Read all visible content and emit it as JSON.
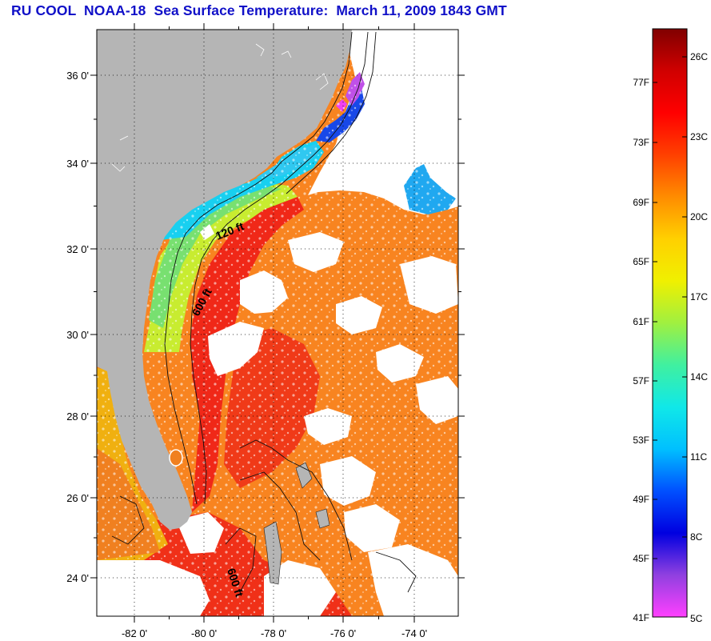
{
  "title": "RU COOL  NOAA-18  Sea Surface Temperature:  March 11, 2009 1843 GMT",
  "map": {
    "lat_ticks": [
      "24 0'",
      "26 0'",
      "28 0'",
      "30 0'",
      "32 0'",
      "34 0'",
      "36 0'"
    ],
    "lon_ticks": [
      "-82 0'",
      "-80 0'",
      "-78 0'",
      "-76 0'",
      "-74 0'"
    ],
    "contour_labels": [
      "120 ft",
      "600 ft",
      "600 ft"
    ],
    "colors": {
      "land": "#b5b5b5",
      "cloud": "#ffffff",
      "gulf_stream": "#f02818",
      "offshore": "#f88420",
      "shelf_warm": "#f8e000",
      "shelf_green": "#90e060",
      "shelf_cyan": "#18d8e8",
      "cold_blue": "#1850f0",
      "cold_purple": "#b040e0"
    }
  },
  "colorbar": {
    "f_labels": [
      "77F",
      "73F",
      "69F",
      "65F",
      "61F",
      "57F",
      "53F",
      "49F",
      "45F",
      "41F"
    ],
    "c_labels": [
      "26C",
      "23C",
      "20C",
      "17C",
      "14C",
      "11C",
      "8C",
      "5C"
    ],
    "stops": [
      "#ff40ff",
      "#9040e0",
      "#0000e0",
      "#0050ff",
      "#00c0ff",
      "#10e8e8",
      "#40f0a0",
      "#a0f040",
      "#f0f000",
      "#ffd000",
      "#ff8c00",
      "#ff4000",
      "#ff0000",
      "#d00000",
      "#800000"
    ]
  }
}
